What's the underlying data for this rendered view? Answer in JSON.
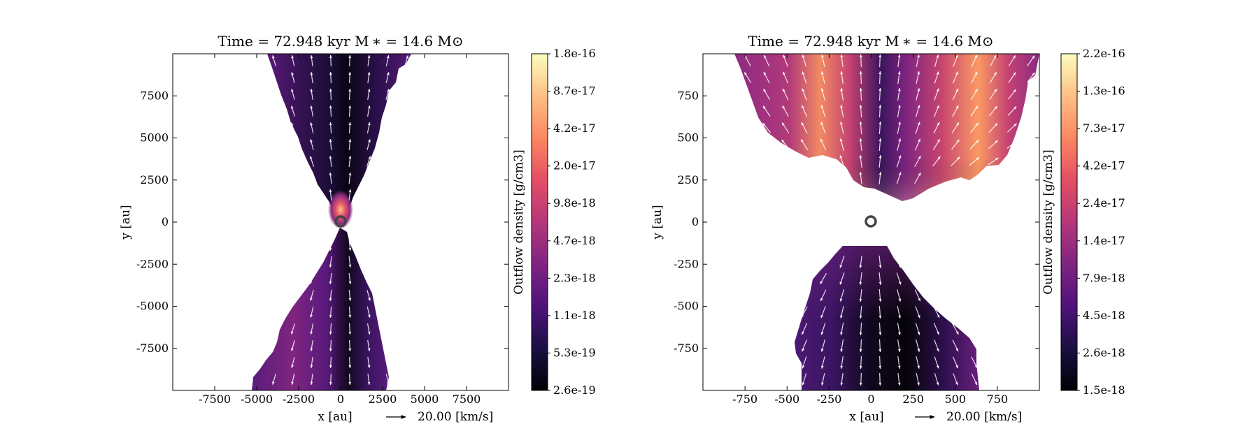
{
  "chart_data": [
    {
      "type": "heatmap",
      "title": "Time = 72.948 kyr    M ∗ = 14.6 M⊙",
      "xlabel": "x [au]",
      "ylabel": "y [au]",
      "xlim": [
        -10000,
        10000
      ],
      "ylim": [
        -10000,
        10000
      ],
      "xticks": [
        -7500,
        -5000,
        -2500,
        0,
        2500,
        5000,
        7500
      ],
      "yticks": [
        -7500,
        -5000,
        -2500,
        0,
        2500,
        5000,
        7500
      ],
      "xtick_labels": [
        "-7500",
        "-5000",
        "-2500",
        "0",
        "2500",
        "5000",
        "7500"
      ],
      "ytick_labels": [
        "-7500",
        "-5000",
        "-2500",
        "0",
        "2500",
        "5000",
        "7500"
      ],
      "colorbar_label": "Outflow density [g/cm3]",
      "colorbar_ticks": [
        "1.8e-16",
        "8.7e-17",
        "4.2e-17",
        "2.0e-17",
        "9.8e-18",
        "4.7e-18",
        "2.3e-18",
        "1.1e-18",
        "5.3e-19",
        "2.6e-19"
      ],
      "colormap": "magma",
      "vector_key": "20.00 [km/s]",
      "star_marker": [
        0,
        0
      ],
      "outflow_upper_edges": [
        [
          8000,
          -3800,
          4000
        ],
        [
          6000,
          -2800,
          2400
        ],
        [
          4000,
          -2200,
          1000
        ],
        [
          2000,
          -1000,
          400
        ],
        [
          0,
          -200,
          200
        ]
      ],
      "outflow_lower_edges": [
        [
          -500,
          -200,
          200
        ],
        [
          -2500,
          -1200,
          600
        ],
        [
          -5000,
          -2800,
          1600
        ],
        [
          -7500,
          -3800,
          2400
        ],
        [
          -10000,
          -5400,
          2600
        ]
      ]
    },
    {
      "type": "heatmap",
      "title": "Time = 72.948 kyr    M ∗ = 14.6 M⊙",
      "xlabel": "x [au]",
      "ylabel": "y [au]",
      "xlim": [
        -1000,
        1000
      ],
      "ylim": [
        -1000,
        1000
      ],
      "xticks": [
        -750,
        -500,
        -250,
        0,
        250,
        500,
        750
      ],
      "yticks": [
        -750,
        -500,
        -250,
        0,
        250,
        500,
        750
      ],
      "xtick_labels": [
        "-750",
        "-500",
        "-250",
        "0",
        "250",
        "500",
        "750"
      ],
      "ytick_labels": [
        "-750",
        "-500",
        "-250",
        "0",
        "250",
        "500",
        "750"
      ],
      "colorbar_label": "Outflow density [g/cm3]",
      "colorbar_ticks": [
        "2.2e-16",
        "1.3e-16",
        "7.3e-17",
        "4.2e-17",
        "2.4e-17",
        "1.4e-17",
        "7.9e-18",
        "4.5e-18",
        "2.6e-18",
        "1.5e-18"
      ],
      "colormap": "magma",
      "vector_key": "20.00 [km/s]",
      "star_marker": [
        0,
        0
      ]
    }
  ]
}
